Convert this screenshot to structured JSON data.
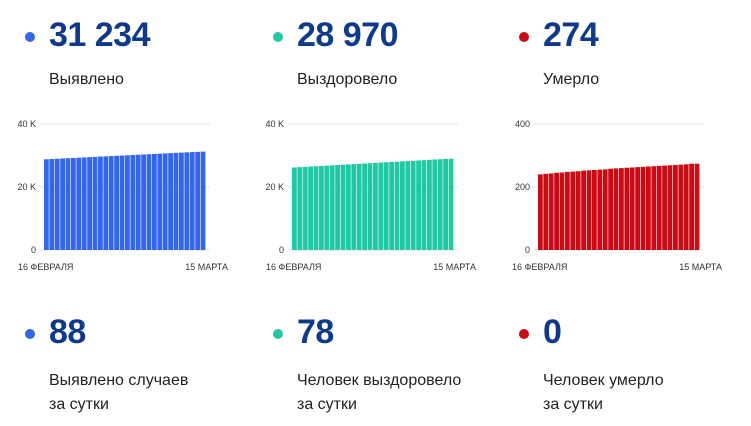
{
  "panels": [
    {
      "total": "31 234",
      "total_label": "Выявлено",
      "daily": "88",
      "daily_label_line1": "Выявлено случаев",
      "daily_label_line2": "за сутки",
      "color": "#3366ee"
    },
    {
      "total": "28 970",
      "total_label": "Выздоровело",
      "daily": "78",
      "daily_label_line1": "Человек выздоровело",
      "daily_label_line2": "за сутки",
      "color": "#1ec9a4"
    },
    {
      "total": "274",
      "total_label": "Умерло",
      "daily": "0",
      "daily_label_line1": "Человек умерло",
      "daily_label_line2": "за сутки",
      "color": "#cc0a14"
    }
  ],
  "chart_data": [
    {
      "type": "bar",
      "x_start_label": "16 ФЕВРАЛЯ",
      "x_end_label": "15 МАРТА",
      "y_ticks": [
        "0",
        "20 K",
        "40 K"
      ],
      "ylim": [
        0,
        40000
      ],
      "grid": true,
      "values": [
        28800,
        28880,
        28970,
        29050,
        29140,
        29220,
        29310,
        29390,
        29480,
        29560,
        29650,
        29730,
        29820,
        29900,
        29990,
        30070,
        30160,
        30240,
        30330,
        30410,
        30500,
        30580,
        30670,
        30750,
        30840,
        30920,
        31010,
        31090,
        31146,
        31234
      ]
    },
    {
      "type": "bar",
      "x_start_label": "16 ФЕВРАЛЯ",
      "x_end_label": "15 МАРТА",
      "y_ticks": [
        "0",
        "20 K",
        "40 K"
      ],
      "ylim": [
        0,
        40000
      ],
      "grid": true,
      "values": [
        26200,
        26300,
        26400,
        26490,
        26590,
        26690,
        26780,
        26880,
        26980,
        27070,
        27170,
        27270,
        27360,
        27460,
        27560,
        27650,
        27750,
        27850,
        27940,
        28040,
        28140,
        28230,
        28330,
        28430,
        28520,
        28620,
        28720,
        28810,
        28892,
        28970
      ]
    },
    {
      "type": "bar",
      "x_start_label": "16 ФЕВРАЛЯ",
      "x_end_label": "15 МАРТА",
      "y_ticks": [
        "0",
        "200",
        "400"
      ],
      "ylim": [
        0,
        400
      ],
      "grid": true,
      "values": [
        240,
        242,
        243,
        245,
        246,
        248,
        249,
        250,
        252,
        253,
        254,
        255,
        256,
        258,
        259,
        260,
        261,
        262,
        263,
        264,
        265,
        266,
        267,
        268,
        269,
        270,
        271,
        272,
        274,
        274
      ]
    }
  ]
}
